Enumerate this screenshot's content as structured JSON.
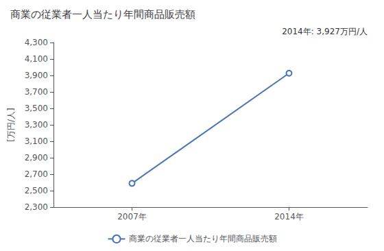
{
  "chart_data": {
    "type": "line",
    "title": "商業の従業者一人当たり年間商品販売額",
    "ylabel": "[万円/人]",
    "annotation": "2014年: 3,927万円/人",
    "x": [
      2007,
      2014
    ],
    "series": [
      {
        "name": "商業の従業者一人当たり年間商品販売額",
        "color": "#4472C4",
        "marker": "circle",
        "values": [
          2589,
          3927
        ]
      }
    ],
    "xlim": [
      2003.5,
      2017.5
    ],
    "xticks": [
      {
        "value": 2007,
        "label": "2007年"
      },
      {
        "value": 2014,
        "label": "2014年"
      }
    ],
    "ylim": [
      2300,
      4300
    ],
    "yticks": [
      {
        "value": 2300,
        "label": "2,300"
      },
      {
        "value": 2500,
        "label": "2,500"
      },
      {
        "value": 2700,
        "label": "2,700"
      },
      {
        "value": 2900,
        "label": "2,900"
      },
      {
        "value": 3100,
        "label": "3,100"
      },
      {
        "value": 3300,
        "label": "3,300"
      },
      {
        "value": 3500,
        "label": "3,500"
      },
      {
        "value": 3700,
        "label": "3,700"
      },
      {
        "value": 3900,
        "label": "3,900"
      },
      {
        "value": 4100,
        "label": "4,100"
      },
      {
        "value": 4300,
        "label": "4,300"
      }
    ],
    "grid": false,
    "legend": "bottom"
  }
}
